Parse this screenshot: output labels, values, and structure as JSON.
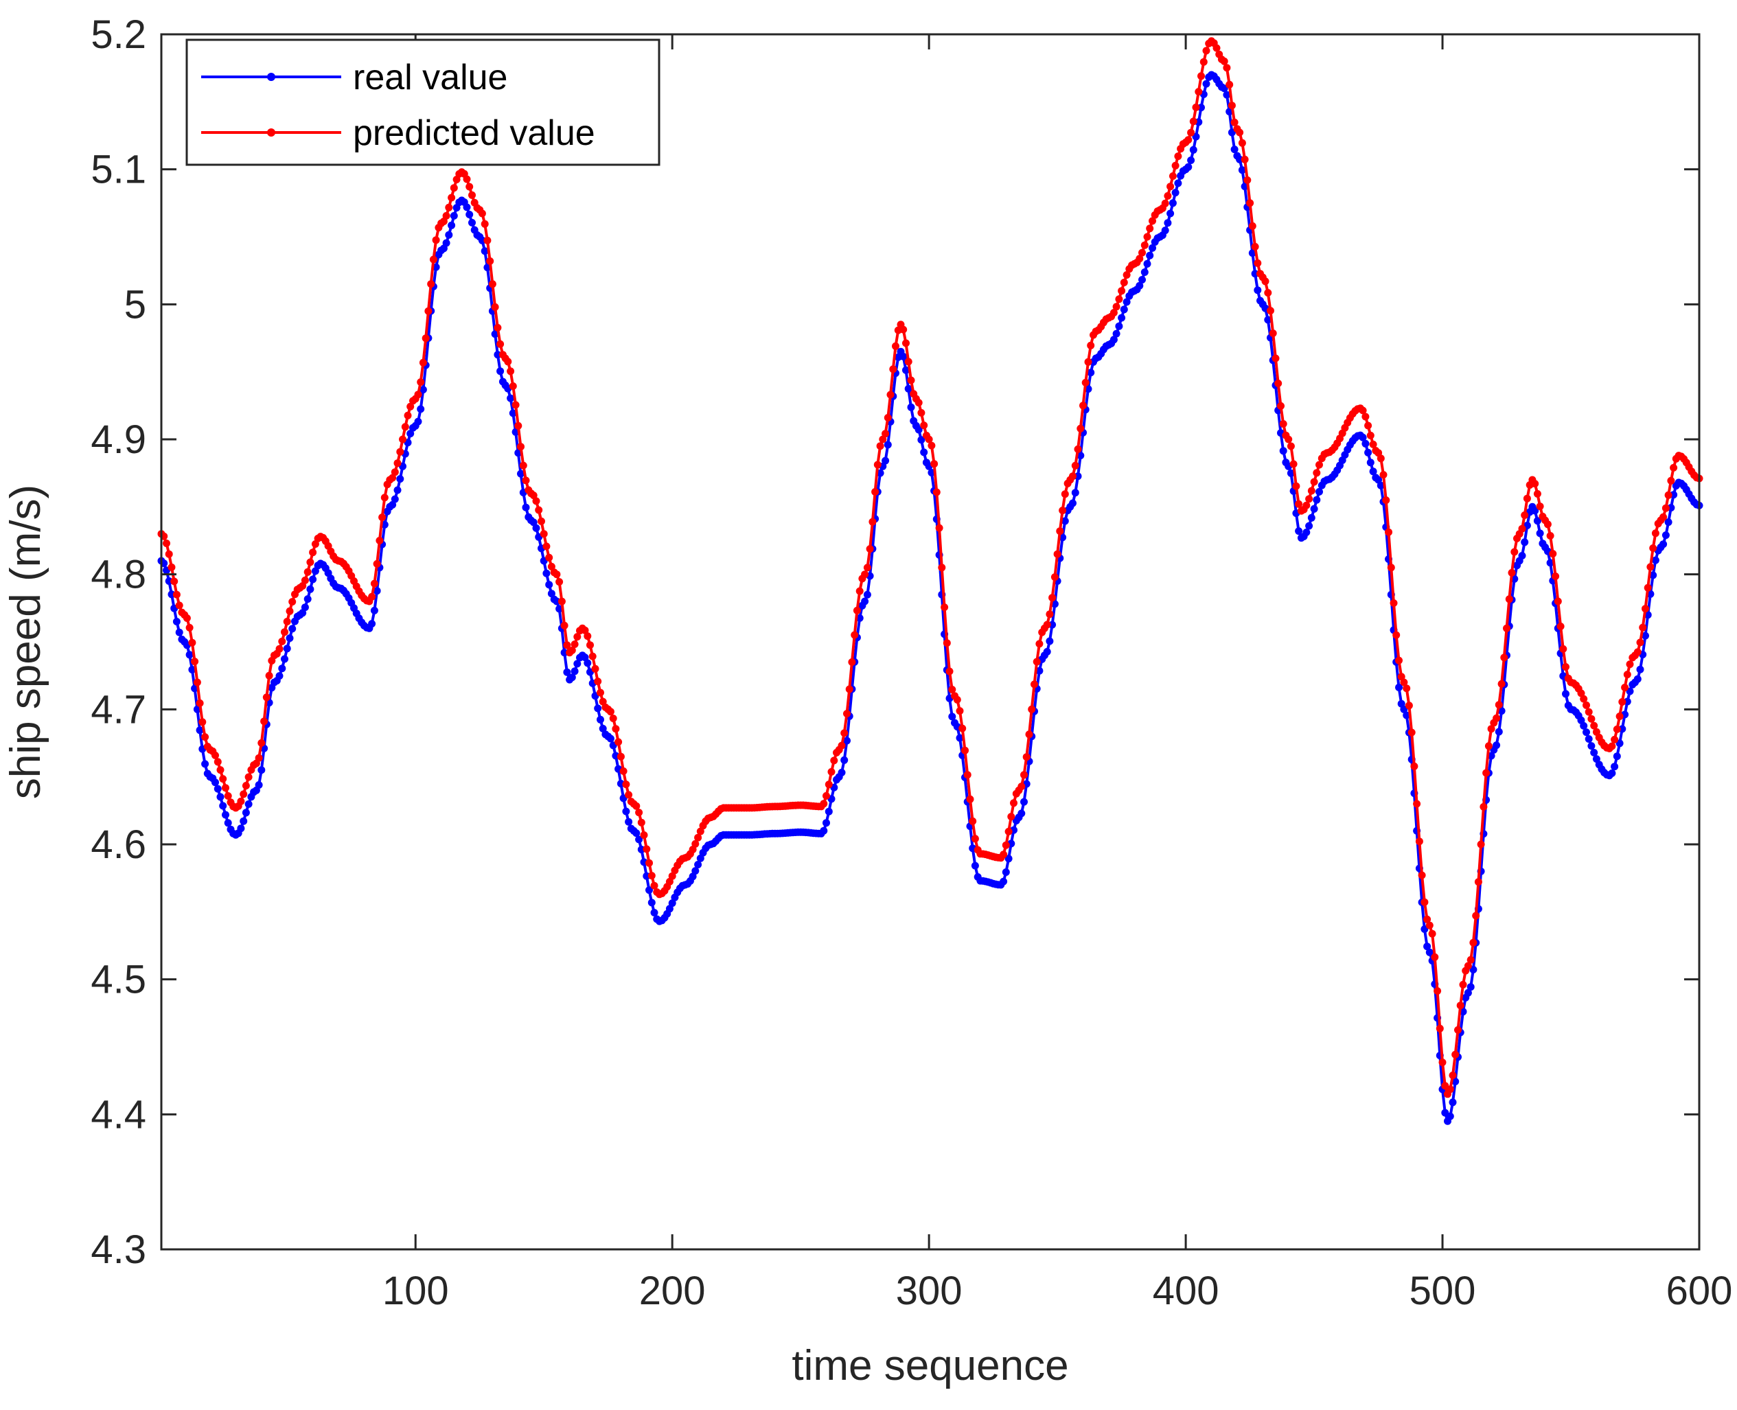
{
  "chart_data": {
    "type": "line",
    "title": "",
    "xlabel": "time sequence",
    "ylabel": "ship speed (m/s)",
    "xlim": [
      1,
      600
    ],
    "ylim": [
      4.3,
      5.2
    ],
    "xticks": [
      100,
      200,
      300,
      400,
      500,
      600
    ],
    "yticks": [
      4.3,
      4.4,
      4.5,
      4.6,
      4.7,
      4.8,
      4.9,
      5,
      5.1,
      5.2
    ],
    "ytick_labels": [
      "4.3",
      "4.4",
      "4.5",
      "4.6",
      "4.7",
      "4.8",
      "4.9",
      "5",
      "5.1",
      "5.2"
    ],
    "grid": false,
    "legend_position": "top-left",
    "markers": true,
    "series": [
      {
        "name": "real value",
        "color": "#0000ff",
        "x": [
          1,
          10,
          20,
          30,
          38,
          45,
          55,
          63,
          70,
          82,
          90,
          100,
          110,
          118,
          125,
          135,
          145,
          155,
          160,
          165,
          175,
          185,
          195,
          205,
          215,
          220,
          230,
          240,
          250,
          258,
          265,
          275,
          282,
          289,
          295,
          300,
          310,
          320,
          328,
          335,
          345,
          355,
          365,
          370,
          380,
          390,
          400,
          410,
          415,
          420,
          430,
          440,
          445,
          455,
          468,
          475,
          485,
          495,
          502,
          510,
          520,
          530,
          535,
          540,
          550,
          565,
          575,
          585,
          592,
          600
        ],
        "values": [
          4.81,
          4.75,
          4.65,
          4.607,
          4.64,
          4.72,
          4.77,
          4.808,
          4.79,
          4.76,
          4.85,
          4.91,
          5.04,
          5.077,
          5.05,
          4.94,
          4.84,
          4.78,
          4.722,
          4.74,
          4.68,
          4.61,
          4.543,
          4.57,
          4.6,
          4.607,
          4.607,
          4.608,
          4.609,
          4.608,
          4.65,
          4.78,
          4.88,
          4.965,
          4.91,
          4.88,
          4.69,
          4.573,
          4.57,
          4.62,
          4.74,
          4.85,
          4.96,
          4.97,
          5.01,
          5.05,
          5.1,
          5.17,
          5.16,
          5.11,
          5.0,
          4.88,
          4.827,
          4.87,
          4.903,
          4.87,
          4.7,
          4.52,
          4.395,
          4.49,
          4.67,
          4.81,
          4.85,
          4.82,
          4.7,
          4.651,
          4.72,
          4.82,
          4.868,
          4.851
        ]
      },
      {
        "name": "predicted value",
        "color": "#ff0000",
        "x": [
          1,
          10,
          20,
          30,
          38,
          45,
          55,
          63,
          70,
          82,
          90,
          100,
          110,
          118,
          125,
          135,
          145,
          155,
          160,
          165,
          175,
          185,
          195,
          205,
          215,
          220,
          230,
          240,
          250,
          258,
          265,
          275,
          282,
          289,
          295,
          300,
          310,
          320,
          328,
          335,
          345,
          355,
          365,
          370,
          380,
          390,
          400,
          410,
          415,
          420,
          430,
          440,
          445,
          455,
          468,
          475,
          485,
          495,
          502,
          510,
          520,
          530,
          535,
          540,
          550,
          565,
          575,
          585,
          592,
          600
        ],
        "values": [
          4.83,
          4.77,
          4.67,
          4.627,
          4.66,
          4.74,
          4.79,
          4.828,
          4.81,
          4.78,
          4.87,
          4.93,
          5.06,
          5.098,
          5.07,
          4.96,
          4.86,
          4.8,
          4.742,
          4.76,
          4.7,
          4.63,
          4.563,
          4.59,
          4.62,
          4.627,
          4.627,
          4.628,
          4.629,
          4.628,
          4.67,
          4.8,
          4.9,
          4.985,
          4.93,
          4.9,
          4.71,
          4.593,
          4.59,
          4.64,
          4.76,
          4.87,
          4.98,
          4.99,
          5.03,
          5.07,
          5.12,
          5.195,
          5.18,
          5.13,
          5.02,
          4.9,
          4.847,
          4.89,
          4.923,
          4.89,
          4.72,
          4.54,
          4.415,
          4.51,
          4.69,
          4.83,
          4.87,
          4.84,
          4.72,
          4.671,
          4.74,
          4.84,
          4.888,
          4.871
        ]
      }
    ]
  }
}
